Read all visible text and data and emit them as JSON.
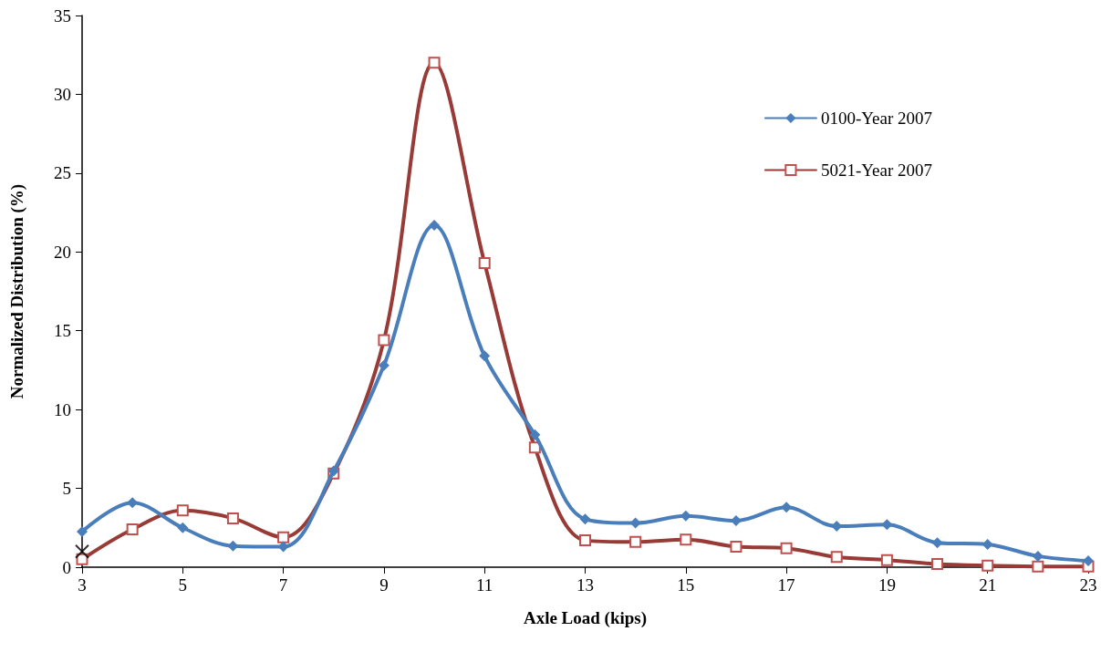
{
  "chart_data": {
    "type": "line",
    "xlabel": "Axle Load (kips)",
    "ylabel": "Normalized Distribution (%)",
    "x": [
      3,
      4,
      5,
      6,
      7,
      8,
      9,
      10,
      11,
      12,
      13,
      14,
      15,
      16,
      17,
      18,
      19,
      20,
      21,
      22,
      23
    ],
    "series": [
      {
        "name": "0100-Year 2007",
        "color": "#4a7ebb",
        "marker": "diamond",
        "values": [
          2.25,
          4.1,
          2.5,
          1.35,
          1.3,
          6.1,
          12.8,
          21.7,
          13.4,
          8.4,
          3.05,
          2.8,
          3.25,
          2.95,
          3.8,
          2.6,
          2.7,
          1.55,
          1.45,
          0.7,
          0.4
        ]
      },
      {
        "name": "5021-Year 2007",
        "color": "#983b37",
        "marker": "square",
        "values": [
          0.5,
          2.4,
          3.6,
          3.1,
          1.9,
          5.95,
          14.4,
          32.0,
          19.3,
          7.6,
          1.7,
          1.6,
          1.75,
          1.3,
          1.2,
          0.65,
          0.45,
          0.2,
          0.1,
          0.05,
          0.05
        ]
      },
      {
        "type": "scatter",
        "color": "#000000",
        "marker": "cross",
        "x": [
          3
        ],
        "values": [
          1
        ]
      }
    ],
    "xlim": [
      3,
      23
    ],
    "xticks": [
      3,
      5,
      7,
      9,
      11,
      13,
      15,
      17,
      19,
      21,
      23
    ],
    "ylim": [
      0,
      35
    ],
    "yticks": [
      0,
      5,
      10,
      15,
      20,
      25,
      30,
      35
    ],
    "grid": false,
    "legend": "top right"
  }
}
